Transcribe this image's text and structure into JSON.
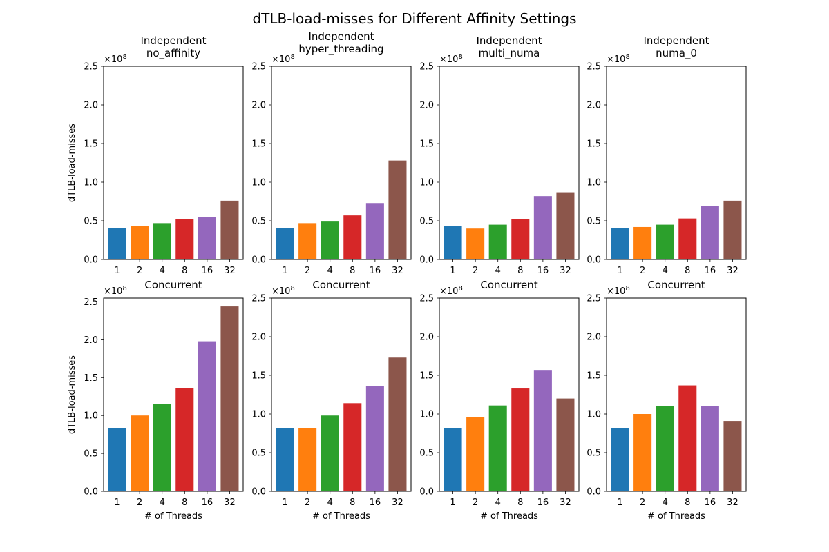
{
  "figure": {
    "title": "dTLB-load-misses for Different Affinity Settings"
  },
  "chart_data": {
    "type": "bar",
    "scale_label": "×10",
    "scale_exponent": "8",
    "yticks": [
      "0.0",
      "0.5",
      "1.0",
      "1.5",
      "2.0",
      "2.5"
    ],
    "categories": [
      "1",
      "2",
      "4",
      "8",
      "16",
      "32"
    ],
    "bar_colors": [
      "#1f77b4",
      "#ff7f0e",
      "#2ca02c",
      "#d62728",
      "#9467bd",
      "#8c564b"
    ],
    "panels": [
      {
        "title": [
          "Independent",
          "no_affinity"
        ],
        "ylabel": "dTLB-load-misses",
        "xlabel": "",
        "ylim": [
          0,
          2.5
        ],
        "values": [
          0.41,
          0.43,
          0.47,
          0.52,
          0.55,
          0.76
        ]
      },
      {
        "title": [
          "Independent",
          "hyper_threading"
        ],
        "ylabel": "",
        "xlabel": "",
        "ylim": [
          0,
          2.5
        ],
        "values": [
          0.41,
          0.47,
          0.49,
          0.57,
          0.73,
          1.28
        ]
      },
      {
        "title": [
          "Independent",
          "multi_numa"
        ],
        "ylabel": "",
        "xlabel": "",
        "ylim": [
          0,
          2.5
        ],
        "values": [
          0.43,
          0.4,
          0.45,
          0.52,
          0.82,
          0.87
        ]
      },
      {
        "title": [
          "Independent",
          "numa_0"
        ],
        "ylabel": "",
        "xlabel": "",
        "ylim": [
          0,
          2.5
        ],
        "values": [
          0.41,
          0.42,
          0.45,
          0.53,
          0.69,
          0.76
        ]
      },
      {
        "title": [
          "Concurrent"
        ],
        "ylabel": "dTLB-load-misses",
        "xlabel": "# of Threads",
        "ylim": [
          0,
          2.55
        ],
        "values": [
          0.83,
          1.0,
          1.15,
          1.36,
          1.98,
          2.44
        ]
      },
      {
        "title": [
          "Concurrent"
        ],
        "ylabel": "",
        "xlabel": "# of Threads",
        "ylim": [
          0,
          2.5
        ],
        "values": [
          0.82,
          0.82,
          0.98,
          1.14,
          1.36,
          1.73
        ]
      },
      {
        "title": [
          "Concurrent"
        ],
        "ylabel": "",
        "xlabel": "# of Threads",
        "ylim": [
          0,
          2.5
        ],
        "values": [
          0.82,
          0.96,
          1.11,
          1.33,
          1.57,
          1.2
        ]
      },
      {
        "title": [
          "Concurrent"
        ],
        "ylabel": "",
        "xlabel": "# of Threads",
        "ylim": [
          0,
          2.5
        ],
        "values": [
          0.82,
          1.0,
          1.1,
          1.37,
          1.1,
          0.91
        ]
      }
    ]
  }
}
